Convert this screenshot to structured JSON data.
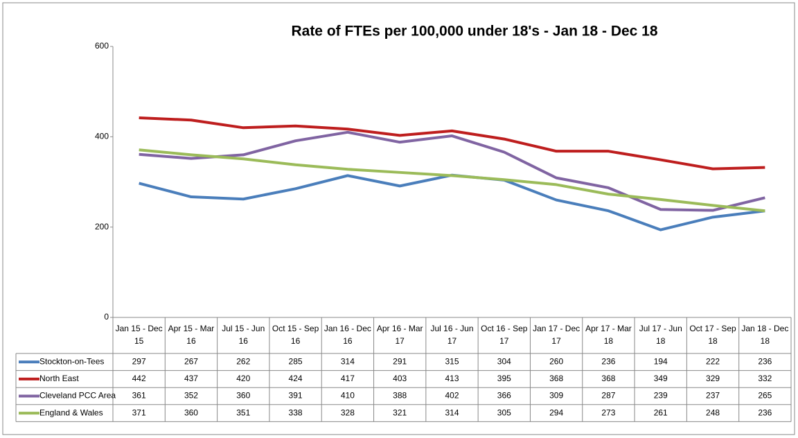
{
  "chart_data": {
    "type": "line",
    "title": "Rate of FTEs per 100,000 under 18's - Jan 18 - Dec 18",
    "categories": [
      "Jan 15 - Dec 15",
      "Apr 15 - Mar 16",
      "Jul 15 - Jun 16",
      "Oct 15 - Sep 16",
      "Jan 16 - Dec 16",
      "Apr 16 - Mar 17",
      "Jul 16 - Jun 17",
      "Oct 16 - Sep 17",
      "Jan 17 - Dec 17",
      "Apr 17 - Mar 18",
      "Jul 17 - Jun 18",
      "Oct 17 - Sep 18",
      "Jan 18 - Dec 18"
    ],
    "series": [
      {
        "name": "Stockton-on-Tees",
        "color": "#4a7ebb",
        "values": [
          297,
          267,
          262,
          285,
          314,
          291,
          315,
          304,
          260,
          236,
          194,
          222,
          236
        ]
      },
      {
        "name": "North East",
        "color": "#be1e1e",
        "values": [
          442,
          437,
          420,
          424,
          417,
          403,
          413,
          395,
          368,
          368,
          349,
          329,
          332
        ]
      },
      {
        "name": "Cleveland PCC Area",
        "color": "#8064a2",
        "values": [
          361,
          352,
          360,
          391,
          410,
          388,
          402,
          366,
          309,
          287,
          239,
          237,
          265
        ]
      },
      {
        "name": "England & Wales",
        "color": "#9bbb59",
        "values": [
          371,
          360,
          351,
          338,
          328,
          321,
          314,
          305,
          294,
          273,
          261,
          248,
          236
        ]
      }
    ],
    "ylim": [
      0,
      600
    ],
    "yticks": [
      0,
      200,
      400,
      600
    ],
    "grid": false
  }
}
